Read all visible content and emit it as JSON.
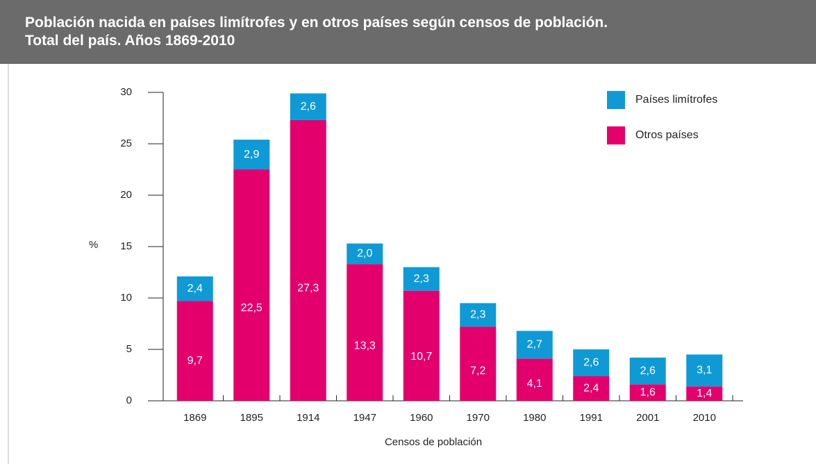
{
  "chart_data": {
    "type": "stacked_bar",
    "title": "Población nacida en países limítrofes y en otros países según censos de población.",
    "subtitle": "Total del país. Años 1869-2010",
    "y_label": "%",
    "x_label": "Censos de población",
    "categories": [
      "1869",
      "1895",
      "1914",
      "1947",
      "1960",
      "1970",
      "1980",
      "1991",
      "2001",
      "2010"
    ],
    "series": [
      {
        "name": "Países limítrofes",
        "color": "#0f9ad6",
        "values": [
          2.4,
          2.9,
          2.6,
          2.0,
          2.3,
          2.3,
          2.7,
          2.6,
          2.6,
          3.1
        ],
        "value_labels": [
          "2,4",
          "2,9",
          "2,6",
          "2,0",
          "2,3",
          "2,3",
          "2,7",
          "2,6",
          "2,6",
          "3,1"
        ]
      },
      {
        "name": "Otros países",
        "color": "#e3006d",
        "values": [
          9.7,
          22.5,
          27.3,
          13.3,
          10.7,
          7.2,
          4.1,
          2.4,
          1.6,
          1.4
        ],
        "value_labels": [
          "9,7",
          "22,5",
          "27,3",
          "13,3",
          "10,7",
          "7,2",
          "4,1",
          "2,4",
          "1,6",
          "1,4"
        ]
      }
    ],
    "ylim": [
      0,
      30
    ],
    "yticks": [
      0,
      5,
      10,
      15,
      20,
      25,
      30
    ],
    "legend": "upper right"
  }
}
